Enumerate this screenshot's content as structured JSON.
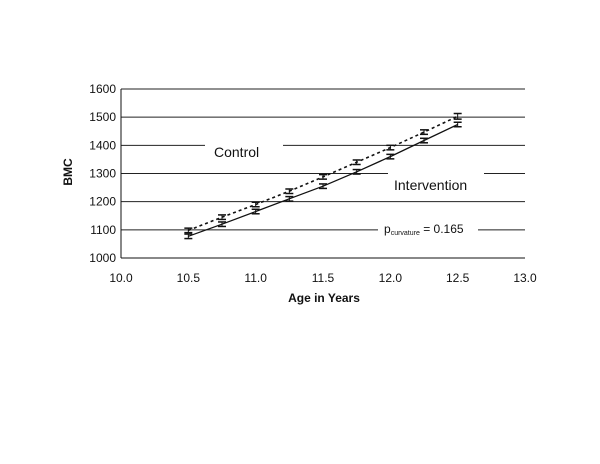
{
  "chart_data": {
    "type": "line",
    "title": "",
    "xlabel": "Age in Years",
    "ylabel": "BMC",
    "xlim": [
      10.0,
      13.0
    ],
    "ylim": [
      1000,
      1600
    ],
    "x_ticks": [
      "10.0",
      "10.5",
      "11.0",
      "11.5",
      "12.0",
      "12.5",
      "13.0"
    ],
    "y_ticks": [
      "1000",
      "1100",
      "1200",
      "1300",
      "1400",
      "1500",
      "1600"
    ],
    "grid": true,
    "x": [
      10.5,
      10.75,
      11.0,
      11.25,
      11.5,
      11.75,
      12.0,
      12.25,
      12.5
    ],
    "series": [
      {
        "name": "Control",
        "style": "dashed",
        "values": [
          1098,
          1145,
          1190,
          1237,
          1288,
          1340,
          1392,
          1447,
          1503
        ],
        "error_low": [
          1090,
          1137,
          1182,
          1229,
          1280,
          1332,
          1384,
          1439,
          1493
        ],
        "error_high": [
          1106,
          1153,
          1198,
          1245,
          1296,
          1348,
          1400,
          1455,
          1513
        ]
      },
      {
        "name": "Intervention",
        "style": "solid",
        "values": [
          1077,
          1120,
          1165,
          1210,
          1255,
          1306,
          1360,
          1417,
          1474
        ],
        "error_low": [
          1069,
          1112,
          1157,
          1202,
          1247,
          1298,
          1352,
          1409,
          1466
        ],
        "error_high": [
          1085,
          1128,
          1173,
          1218,
          1263,
          1314,
          1368,
          1425,
          1482
        ]
      }
    ],
    "annotations": {
      "control_label": "Control",
      "intervention_label": "Intervention",
      "p_main": "p",
      "p_sub": "curvature",
      "p_value": " = 0.165"
    }
  }
}
